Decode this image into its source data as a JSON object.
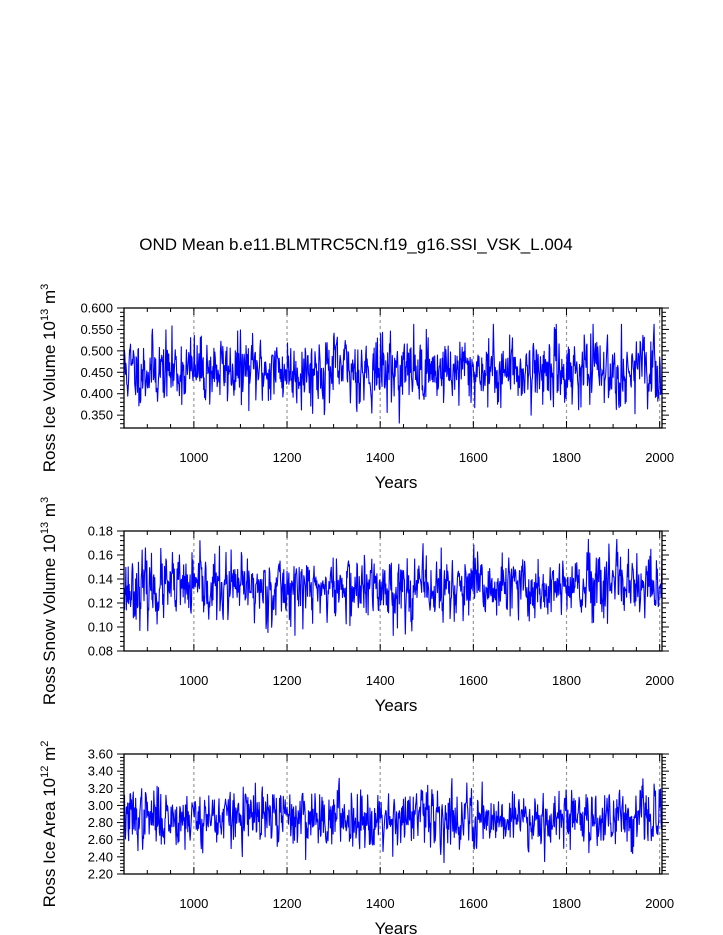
{
  "title": "OND Mean b.e11.BLMTRC5CN.f19_g16.SSI_VSK_L.004",
  "chart_data": [
    {
      "type": "line",
      "name": "ross-ice-volume",
      "ylabel_main": "Ross Ice Volume 10",
      "ylabel_exp": "13",
      "ylabel_unit": " m",
      "ylabel_unit_exp": "3",
      "xlabel": "Years",
      "xlim": [
        850,
        2005
      ],
      "ylim": [
        0.32,
        0.6
      ],
      "yticks": [
        0.35,
        0.4,
        0.45,
        0.5,
        0.55,
        0.6
      ],
      "yticklabels": [
        "0.350",
        "0.400",
        "0.450",
        "0.500",
        "0.550",
        "0.600"
      ],
      "xticks": [
        1000,
        1200,
        1400,
        1600,
        1800,
        2000
      ],
      "xticklabels": [
        "1000",
        "1200",
        "1400",
        "1600",
        "1800",
        "2000"
      ],
      "gridlines_x": [
        1000,
        1200,
        1400,
        1600,
        1800,
        2000
      ],
      "series": {
        "mean": 0.455,
        "amplitude": 0.038,
        "min": 0.325,
        "max": 0.562,
        "seed": 11,
        "color": "#0000ff"
      }
    },
    {
      "type": "line",
      "name": "ross-snow-volume",
      "ylabel_main": "Ross Snow Volume 10",
      "ylabel_exp": "13",
      "ylabel_unit": " m",
      "ylabel_unit_exp": "3",
      "xlabel": "Years",
      "xlim": [
        850,
        2005
      ],
      "ylim": [
        0.08,
        0.18
      ],
      "yticks": [
        0.08,
        0.1,
        0.12,
        0.14,
        0.16,
        0.18
      ],
      "yticklabels": [
        "0.08",
        "0.10",
        "0.12",
        "0.14",
        "0.16",
        "0.18"
      ],
      "xticks": [
        1000,
        1200,
        1400,
        1600,
        1800,
        2000
      ],
      "xticklabels": [
        "1000",
        "1200",
        "1400",
        "1600",
        "1800",
        "2000"
      ],
      "gridlines_x": [
        1000,
        1200,
        1400,
        1600,
        1800,
        2000
      ],
      "series": {
        "mean": 0.132,
        "amplitude": 0.013,
        "min": 0.093,
        "max": 0.173,
        "seed": 23,
        "color": "#0000ff"
      }
    },
    {
      "type": "line",
      "name": "ross-ice-area",
      "ylabel_main": "Ross Ice Area 10",
      "ylabel_exp": "12",
      "ylabel_unit": " m",
      "ylabel_unit_exp": "2",
      "xlabel": "Years",
      "xlim": [
        850,
        2005
      ],
      "ylim": [
        2.2,
        3.6
      ],
      "yticks": [
        2.2,
        2.4,
        2.6,
        2.8,
        3.0,
        3.2,
        3.4,
        3.6
      ],
      "yticklabels": [
        "2.20",
        "2.40",
        "2.60",
        "2.80",
        "3.00",
        "3.20",
        "3.40",
        "3.60"
      ],
      "xticks": [
        1000,
        1200,
        1400,
        1600,
        1800,
        2000
      ],
      "xticklabels": [
        "1000",
        "1200",
        "1400",
        "1600",
        "1800",
        "2000"
      ],
      "gridlines_x": [
        1000,
        1200,
        1400,
        1600,
        1800,
        2000
      ],
      "series": {
        "mean": 2.86,
        "amplitude": 0.16,
        "min": 2.26,
        "max": 3.4,
        "seed": 37,
        "color": "#0000ff"
      }
    }
  ]
}
